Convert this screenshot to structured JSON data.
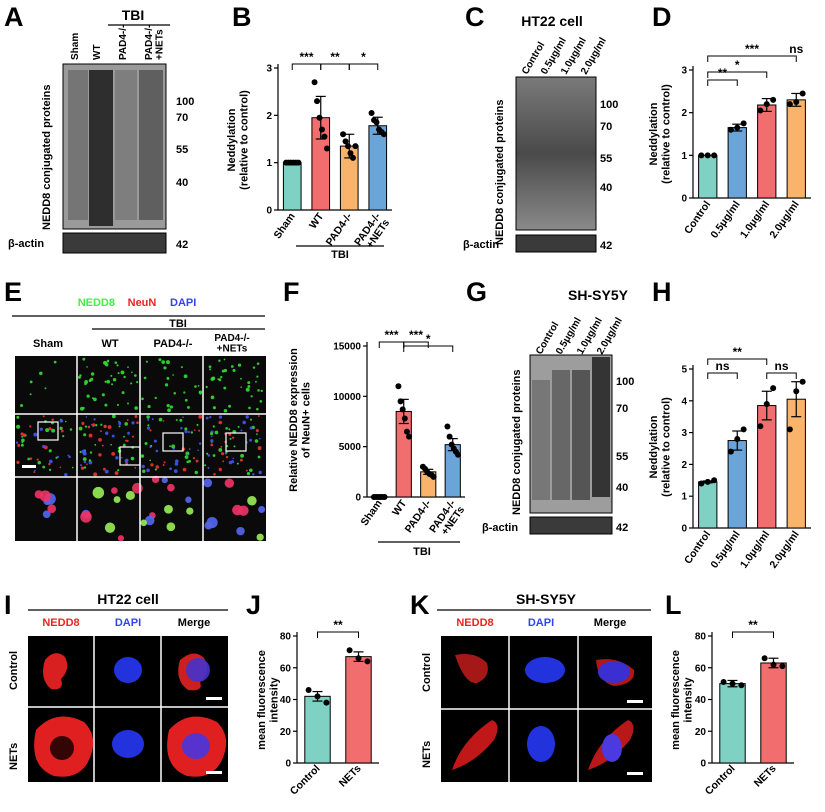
{
  "colors": {
    "teal": "#7fd1c4",
    "salmon": "#f26d6d",
    "orange": "#f9b36b",
    "blue": "#6aa4d8",
    "nedd8": "#44ee44",
    "neun": "#ee2222",
    "dapi": "#3344ee"
  },
  "panels": {
    "A": {
      "letter": "A",
      "group": "TBI",
      "lanes": [
        "Sham",
        "WT",
        "PAD4-/-",
        "PAD4-/-\n+NETs"
      ],
      "ylabel": "NEDD8 conjugated proteins",
      "markers": [
        "100",
        "70",
        "55",
        "40"
      ],
      "actin_label": "β-actin",
      "actin_marker": "42"
    },
    "B": {
      "letter": "B",
      "group": "TBI"
    },
    "C": {
      "letter": "C",
      "title": "HT22 cell",
      "lanes": [
        "Control",
        "0.5μg/ml",
        "1.0μg/ml",
        "2.0μg/ml"
      ],
      "ylabel": "NEDD8 conjugated proteins",
      "markers": [
        "100",
        "70",
        "55",
        "40"
      ],
      "actin_label": "β-actin",
      "actin_marker": "42"
    },
    "D": {
      "letter": "D"
    },
    "E": {
      "letter": "E",
      "stain1": "NEDD8",
      "stain2": "NeuN",
      "stain3": "DAPI",
      "group": "TBI",
      "columns": [
        "Sham",
        "WT",
        "PAD4-/-",
        "PAD4-/-\n+NETs"
      ]
    },
    "F": {
      "letter": "F",
      "group": "TBI"
    },
    "G": {
      "letter": "G",
      "title": "SH-SY5Y",
      "lanes": [
        "Control",
        "0.5μg/ml",
        "1.0μg/ml",
        "2.0μg/ml"
      ],
      "ylabel": "NEDD8 conjugated proteins",
      "markers": [
        "100",
        "70",
        "55",
        "40"
      ],
      "actin_label": "β-actin",
      "actin_marker": "42"
    },
    "H": {
      "letter": "H"
    },
    "I": {
      "letter": "I",
      "title": "HT22 cell",
      "columns": [
        "NEDD8",
        "DAPI",
        "Merge"
      ],
      "rows": [
        "Control",
        "NETs"
      ]
    },
    "J": {
      "letter": "J"
    },
    "K": {
      "letter": "K",
      "title": "SH-SY5Y",
      "columns": [
        "NEDD8",
        "DAPI",
        "Merge"
      ],
      "rows": [
        "Control",
        "NETs"
      ]
    },
    "L": {
      "letter": "L"
    }
  },
  "chart_data": [
    {
      "id": "B",
      "type": "bar",
      "ylabel": "Neddylation\n(relative to control)",
      "ylim": [
        0,
        3
      ],
      "yticks": [
        0,
        1,
        2,
        3
      ],
      "categories": [
        "Sham",
        "WT",
        "PAD4-/-",
        "PAD4-/-\n+NETs"
      ],
      "values": [
        1.0,
        1.95,
        1.35,
        1.78
      ],
      "errors": [
        0.02,
        0.45,
        0.25,
        0.18
      ],
      "points": [
        [
          1.0,
          1.0,
          1.0,
          1.0,
          1.0,
          1.0
        ],
        [
          2.7,
          2.3,
          1.95,
          1.7,
          1.55,
          1.3
        ],
        [
          1.6,
          1.45,
          1.35,
          1.2,
          1.1,
          1.35
        ],
        [
          2.05,
          1.9,
          1.85,
          1.7,
          1.65,
          1.6
        ]
      ],
      "colors": [
        "teal",
        "salmon",
        "orange",
        "blue"
      ],
      "sig": [
        {
          "from": 0,
          "to": 1,
          "text": "***"
        },
        {
          "from": 1,
          "to": 2,
          "text": "**"
        },
        {
          "from": 2,
          "to": 3,
          "text": "*"
        }
      ]
    },
    {
      "id": "D",
      "type": "bar",
      "ylabel": "Neddylation\n(relative to control)",
      "ylim": [
        0,
        3
      ],
      "yticks": [
        0,
        1,
        2,
        3
      ],
      "categories": [
        "Control",
        "0.5μg/ml",
        "1.0μg/ml",
        "2.0μg/ml"
      ],
      "values": [
        1.0,
        1.65,
        2.18,
        2.3
      ],
      "errors": [
        0.0,
        0.08,
        0.15,
        0.15
      ],
      "points": [
        [
          1.0,
          1.0,
          1.0
        ],
        [
          1.6,
          1.65,
          1.75
        ],
        [
          2.05,
          2.2,
          2.3
        ],
        [
          2.2,
          2.25,
          2.45
        ]
      ],
      "colors": [
        "teal",
        "blue",
        "salmon",
        "orange"
      ],
      "sig": [
        {
          "from": 0,
          "to": 1,
          "text": "**",
          "level": 1
        },
        {
          "from": 0,
          "to": 2,
          "text": "*",
          "level": 1.5
        },
        {
          "from": 0,
          "to": 3,
          "text": "***",
          "level": 2.5
        },
        {
          "from": 3,
          "to": 3,
          "text": "ns",
          "level": 2.5
        }
      ]
    },
    {
      "id": "F",
      "type": "bar",
      "ylabel": "Relative NEDD8 expression\nof NeuN+ cells",
      "ylim": [
        0,
        15000
      ],
      "yticks": [
        0,
        5000,
        10000,
        15000
      ],
      "categories": [
        "Sham",
        "WT",
        "PAD4-/-",
        "PAD4-/-\n+NETs"
      ],
      "values": [
        0,
        8500,
        2500,
        5200
      ],
      "errors": [
        0,
        1200,
        250,
        600
      ],
      "points": [
        [
          0,
          0,
          0,
          0,
          0,
          0
        ],
        [
          11000,
          9500,
          8700,
          7800,
          6500,
          6000
        ],
        [
          3000,
          2800,
          2500,
          2300,
          2200,
          2000
        ],
        [
          7000,
          6000,
          5200,
          4800,
          4500,
          4200
        ]
      ],
      "colors": [
        "teal",
        "salmon",
        "orange",
        "blue"
      ],
      "sig": [
        {
          "from": 0,
          "to": 1,
          "text": "***"
        },
        {
          "from": 1,
          "to": 2,
          "text": "***"
        },
        {
          "from": 1,
          "to": 3,
          "text": "*"
        }
      ]
    },
    {
      "id": "H",
      "type": "bar",
      "ylabel": "Neddylation\n(relative to control)",
      "ylim": [
        0,
        5
      ],
      "yticks": [
        0,
        1,
        2,
        3,
        4,
        5
      ],
      "categories": [
        "Control",
        "0.5μg/ml",
        "1.0μg/ml",
        "2.0μg/ml"
      ],
      "values": [
        1.45,
        2.75,
        3.85,
        4.05
      ],
      "errors": [
        0.03,
        0.3,
        0.45,
        0.55
      ],
      "points": [
        [
          1.4,
          1.45,
          1.5
        ],
        [
          2.4,
          2.8,
          3.1
        ],
        [
          3.2,
          3.9,
          4.4
        ],
        [
          3.1,
          4.3,
          4.6
        ]
      ],
      "colors": [
        "teal",
        "blue",
        "salmon",
        "orange"
      ],
      "sig": [
        {
          "from": 0,
          "to": 1,
          "text": "ns"
        },
        {
          "from": 0,
          "to": 2,
          "text": "**"
        },
        {
          "from": 2,
          "to": 3,
          "text": "ns"
        }
      ]
    },
    {
      "id": "J",
      "type": "bar",
      "ylabel": "mean fluorescence\nintensity",
      "ylim": [
        0,
        80
      ],
      "yticks": [
        0,
        20,
        40,
        60,
        80
      ],
      "categories": [
        "Control",
        "NETs"
      ],
      "values": [
        42,
        67
      ],
      "errors": [
        3,
        3
      ],
      "points": [
        [
          46,
          42,
          38
        ],
        [
          71,
          66,
          64
        ]
      ],
      "colors": [
        "teal",
        "salmon"
      ],
      "sig": [
        {
          "from": 0,
          "to": 1,
          "text": "**"
        }
      ]
    },
    {
      "id": "L",
      "type": "bar",
      "ylabel": "mean fluorescence\nintensity",
      "ylim": [
        0,
        80
      ],
      "yticks": [
        0,
        20,
        40,
        60,
        80
      ],
      "categories": [
        "Control",
        "NETs"
      ],
      "values": [
        50,
        63
      ],
      "errors": [
        2,
        3
      ],
      "points": [
        [
          51,
          50,
          49
        ],
        [
          66,
          62,
          61
        ]
      ],
      "colors": [
        "teal",
        "salmon"
      ],
      "sig": [
        {
          "from": 0,
          "to": 1,
          "text": "**"
        }
      ]
    }
  ]
}
